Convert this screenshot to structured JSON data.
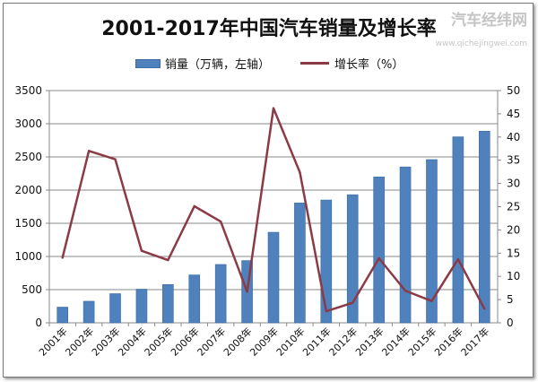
{
  "chart_data": {
    "type": "bar+line",
    "title": "2001-2017年中国汽车销量及增长率",
    "categories": [
      "2001年",
      "2002年",
      "2003年",
      "2004年",
      "2005年",
      "2006年",
      "2007年",
      "2008年",
      "2009年",
      "2010年",
      "2011年",
      "2012年",
      "2013年",
      "2014年",
      "2015年",
      "2016年",
      "2017年"
    ],
    "series": [
      {
        "name": "销量（万辆，左轴）",
        "type": "bar",
        "axis": "left",
        "color": "#4f81bd",
        "values": [
          236.4,
          325.1,
          439.1,
          507.1,
          576.8,
          721.6,
          879.2,
          938.1,
          1364.5,
          1806.2,
          1850.5,
          1930.6,
          2198.4,
          2349.2,
          2459.8,
          2802.8,
          2887.9
        ]
      },
      {
        "name": "增长率（%）",
        "type": "line",
        "axis": "right",
        "color": "#8b3a46",
        "values": [
          14.0,
          37.0,
          35.2,
          15.5,
          13.5,
          25.1,
          21.8,
          6.7,
          46.2,
          32.4,
          2.5,
          4.3,
          13.9,
          6.9,
          4.7,
          13.7,
          3.0
        ]
      }
    ],
    "ylim_left": [
      0,
      3500
    ],
    "yticks_left": [
      "0",
      "500",
      "1000",
      "1500",
      "2000",
      "2500",
      "3000",
      "3500"
    ],
    "ylim_right": [
      0,
      50
    ],
    "yticks_right": [
      "0",
      "5",
      "10",
      "15",
      "20",
      "25",
      "30",
      "35",
      "40",
      "45",
      "50"
    ],
    "grid": true,
    "legend": "top"
  },
  "watermark": {
    "name": "汽车经纬网",
    "url": "www.qichejingwei.com"
  }
}
